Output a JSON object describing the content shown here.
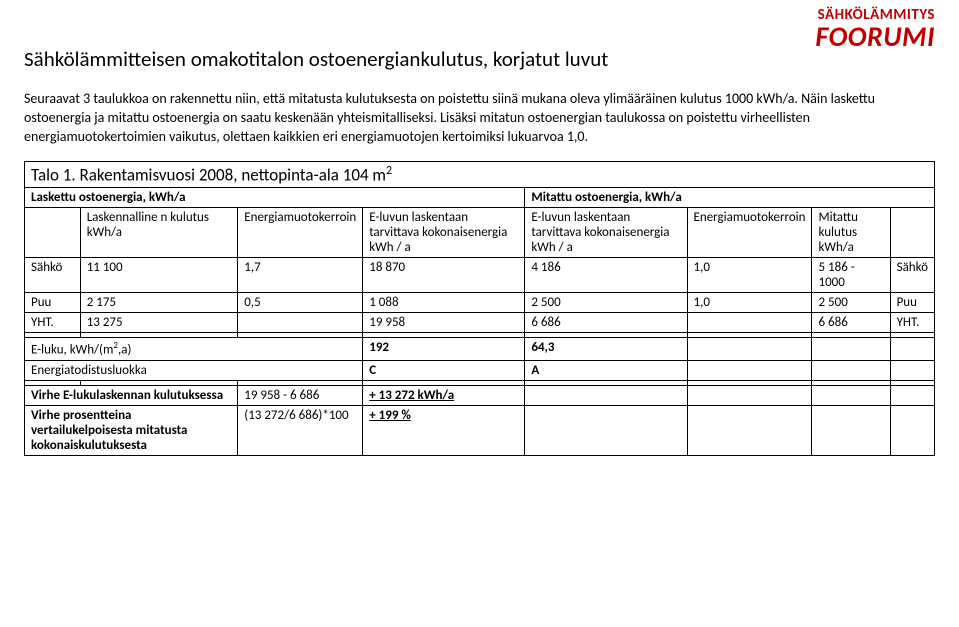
{
  "logo": {
    "top": "SÄHKÖLÄMMITYS",
    "bottom": "FOORUMI"
  },
  "title": "Sähkölämmitteisen omakotitalon ostoenergiankulutus, korjatut luvut",
  "intro": "Seuraavat 3 taulukkoa on rakennettu niin, että mitatusta kulutuksesta on poistettu siinä mukana oleva ylimääräinen kulutus 1000 kWh/a. Näin laskettu ostoenergia ja mitattu ostoenergia on saatu keskenään yhteismitalliseksi. Lisäksi mitatun ostoenergian taulukossa on poistettu virheellisten energiamuotokertoimien vaikutus, olettaen kaikkien eri energiamuotojen kertoimiksi lukuarvoa 1,0.",
  "table": {
    "talo_title_prefix": "Talo 1. Rakentamisvuosi 2008, nettopinta-ala 104 m",
    "talo_title_sup": "2",
    "left_section": "Laskettu ostoenergia, kWh/a",
    "right_section": "Mitattu ostoenergia, kWh/a",
    "headers": {
      "calc_cons": "Laskennalline n kulutus kWh/a",
      "factor": "Energiamuotokerroin",
      "e_total": "E-luvun laskentaan tarvittava kokonaisenergia kWh / a",
      "meas_cons": "Mitattu kulutus kWh/a"
    },
    "rows": [
      {
        "label": "Sähkö",
        "calc": "11 100",
        "f1": "1,7",
        "tot1": "18 870",
        "tot2": "4 186",
        "f2": "1,0",
        "meas": "5 186 - 1000",
        "label2": "Sähkö"
      },
      {
        "label": "Puu",
        "calc": "2 175",
        "f1": "0,5",
        "tot1": "1 088",
        "tot2": "2 500",
        "f2": "1,0",
        "meas": "2 500",
        "label2": "Puu"
      },
      {
        "label": "YHT.",
        "calc": "13 275",
        "f1": "",
        "tot1": "19 958",
        "tot2": "6 686",
        "f2": "",
        "meas": "6 686",
        "label2": "YHT."
      }
    ],
    "eluku": {
      "label_prefix": "E-luku, kWh/(m",
      "label_sup": "2",
      "label_suffix": ",a)",
      "v1": "192",
      "v2": "64,3"
    },
    "eclass": {
      "label": "Energiatodistusluokka",
      "v1": "C",
      "v2": "A"
    },
    "err1": {
      "label": "Virhe E-lukulaskennan kulutuksessa",
      "calc": "19 958 - 6 686",
      "result": "+ 13 272 kWh/a"
    },
    "err2": {
      "label": "Virhe prosentteina vertailukelpoisesta mitatusta kokonaiskulutuksesta",
      "calc": "(13 272/6 686)*100",
      "result": "+ 199 %"
    }
  }
}
